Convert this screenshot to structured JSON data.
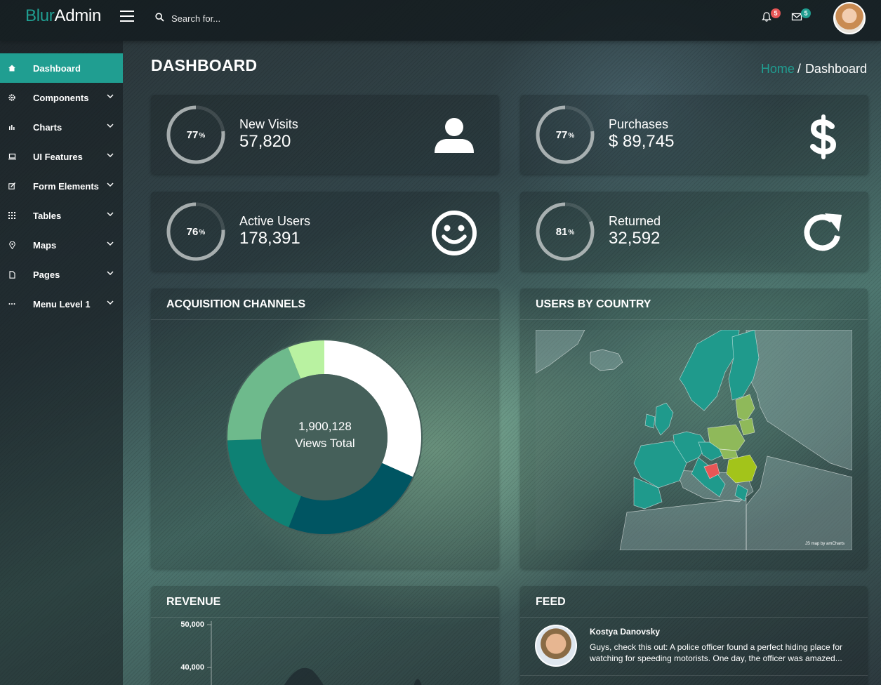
{
  "brand": {
    "part1": "Blur",
    "part2": "Admin"
  },
  "search": {
    "placeholder": "Search for..."
  },
  "notifications": {
    "bell_count": "5",
    "mail_count": "5"
  },
  "colors": {
    "accent": "#209e91",
    "badge_red": "#e85656",
    "badge_green": "#209e91"
  },
  "sidebar": {
    "items": [
      {
        "label": "Dashboard",
        "icon": "home-icon",
        "active": true
      },
      {
        "label": "Components",
        "icon": "gear-icon"
      },
      {
        "label": "Charts",
        "icon": "bar-chart-icon"
      },
      {
        "label": "UI Features",
        "icon": "laptop-icon"
      },
      {
        "label": "Form Elements",
        "icon": "pencil-square-icon"
      },
      {
        "label": "Tables",
        "icon": "grid-icon"
      },
      {
        "label": "Maps",
        "icon": "map-pin-icon"
      },
      {
        "label": "Pages",
        "icon": "file-icon"
      },
      {
        "label": "Menu Level 1",
        "icon": "ellipsis-icon"
      }
    ]
  },
  "page": {
    "title": "DASHBOARD"
  },
  "breadcrumb": {
    "home": "Home",
    "sep": "/",
    "current": "Dashboard"
  },
  "stats": [
    {
      "label": "New Visits",
      "value": "57,820",
      "percent": 77,
      "percent_text": "77",
      "icon": "user-icon"
    },
    {
      "label": "Purchases",
      "value": "$ 89,745",
      "percent": 77,
      "percent_text": "77",
      "icon": "dollar-icon"
    },
    {
      "label": "Active Users",
      "value": "178,391",
      "percent": 76,
      "percent_text": "76",
      "icon": "smile-icon"
    },
    {
      "label": "Returned",
      "value": "32,592",
      "percent": 81,
      "percent_text": "81",
      "icon": "refresh-icon"
    }
  ],
  "acquisition": {
    "title": "ACQUISITION CHANNELS",
    "total_value": "1,900,128",
    "total_label": "Views Total",
    "segments": [
      {
        "share": 0.317,
        "color": "#ffffff"
      },
      {
        "share": 0.243,
        "color": "#005562"
      },
      {
        "share": 0.185,
        "color": "#0e8174"
      },
      {
        "share": 0.194,
        "color": "#6eba8c"
      },
      {
        "share": 0.061,
        "color": "#b9f2a1"
      }
    ]
  },
  "users_by_country": {
    "title": "USERS BY COUNTRY",
    "credit": "JS map by amCharts"
  },
  "revenue": {
    "title": "REVENUE",
    "ticks": [
      "50,000",
      "40,000"
    ]
  },
  "feed": {
    "title": "FEED",
    "items": [
      {
        "name": "Kostya Danovsky",
        "text": "Guys, check this out: A police officer found a perfect hiding place for watching for speeding motorists. One day, the officer was amazed..."
      }
    ]
  }
}
